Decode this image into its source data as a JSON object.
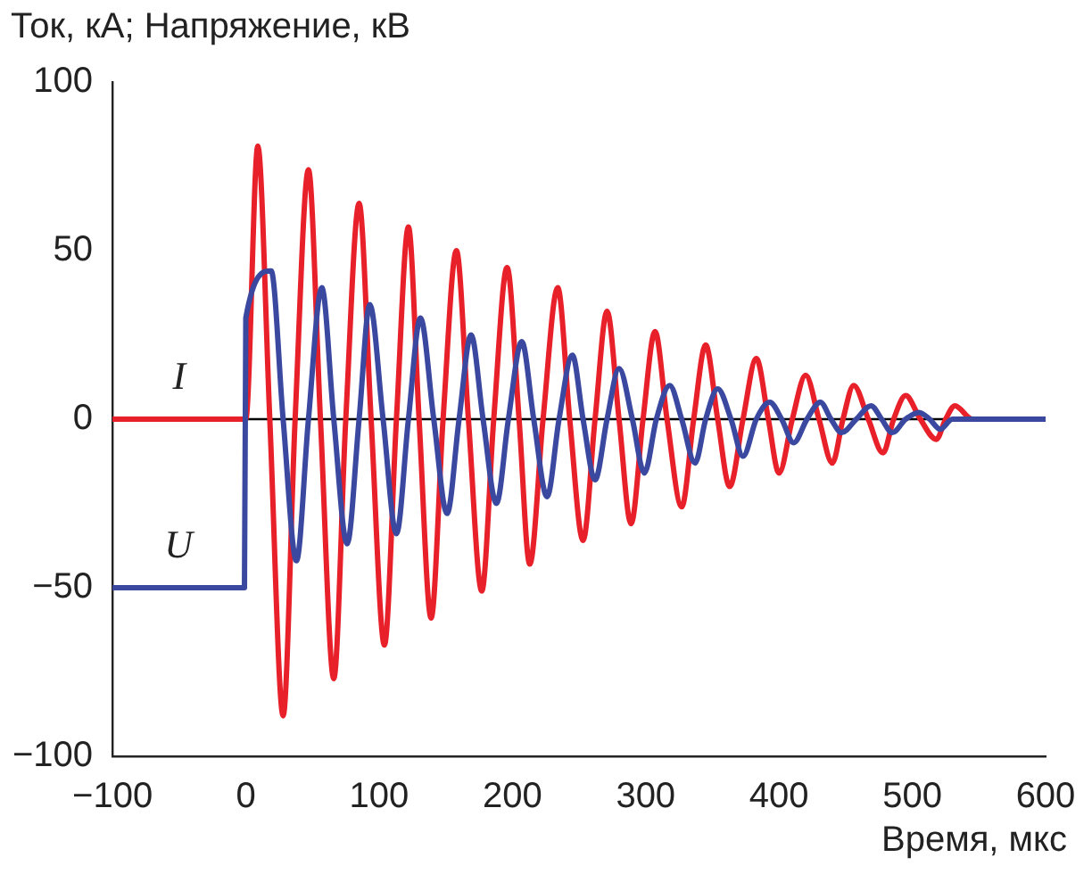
{
  "chart_data": {
    "type": "line",
    "ylabel": "Ток, кА; Напряжение, кВ",
    "xlabel": "Время, мкс",
    "xlim": [
      -100,
      600
    ],
    "xticks": [
      -100,
      0,
      100,
      200,
      300,
      400,
      500,
      600
    ],
    "ylim": [
      -100,
      100
    ],
    "yticks": [
      -100,
      -50,
      0,
      50,
      100
    ],
    "grid": false,
    "legend": false,
    "marker": "none",
    "line_style": "solid",
    "ref_lines": [
      {
        "axis": "y",
        "value": 0,
        "color": "#000000"
      }
    ],
    "series": [
      {
        "name": "U",
        "color": "#3a48a0",
        "x": [
          -100,
          -1,
          0,
          19,
          28,
          38,
          47,
          57,
          66,
          76,
          85,
          93,
          103,
          113,
          122,
          131,
          141,
          151,
          160,
          169,
          178,
          188,
          197,
          207,
          216,
          226,
          235,
          245,
          253,
          262,
          271,
          280,
          290,
          299,
          308,
          318,
          327,
          337,
          345,
          354,
          364,
          373,
          383,
          393,
          402,
          411,
          421,
          431,
          439,
          447,
          458,
          469,
          477,
          485,
          495,
          505,
          513,
          521,
          530,
          600
        ],
        "values": [
          -50,
          -50,
          30,
          44,
          0,
          -42,
          0,
          39,
          0,
          -37,
          0,
          34,
          0,
          -34,
          0,
          30,
          0,
          -28,
          0,
          25,
          0,
          -25,
          0,
          23,
          0,
          -23,
          0,
          19,
          0,
          -18,
          0,
          15,
          0,
          -16,
          0,
          10,
          0,
          -13,
          0,
          9,
          0,
          -11,
          0,
          5,
          0,
          -7,
          0,
          5,
          0,
          -4,
          0,
          4,
          0,
          -4,
          0,
          2,
          0,
          -3,
          0,
          0
        ]
      },
      {
        "name": "I",
        "color": "#e8202a",
        "x": [
          -100,
          0,
          9,
          18,
          28,
          37,
          47,
          56,
          66,
          75,
          85,
          94,
          104,
          113,
          122,
          130,
          139,
          148,
          158,
          167,
          177,
          186,
          196,
          205,
          213,
          223,
          234,
          243,
          253,
          262,
          271,
          280,
          289,
          298,
          307,
          316,
          327,
          336,
          345,
          354,
          363,
          373,
          383,
          392,
          400,
          410,
          420,
          430,
          440,
          448,
          456,
          467,
          478,
          486,
          495,
          506,
          518,
          525,
          532,
          545,
          600
        ],
        "values": [
          0,
          0,
          81,
          0,
          -88,
          0,
          74,
          0,
          -77,
          0,
          64,
          0,
          -67,
          0,
          57,
          0,
          -59,
          0,
          50,
          0,
          -51,
          0,
          45,
          0,
          -43,
          0,
          39,
          0,
          -36,
          0,
          32,
          0,
          -31,
          0,
          26,
          0,
          -26,
          0,
          22,
          0,
          -20,
          0,
          18,
          0,
          -16,
          0,
          13,
          0,
          -13,
          0,
          10,
          0,
          -10,
          0,
          7,
          0,
          -6,
          0,
          4,
          0,
          0
        ]
      }
    ]
  }
}
